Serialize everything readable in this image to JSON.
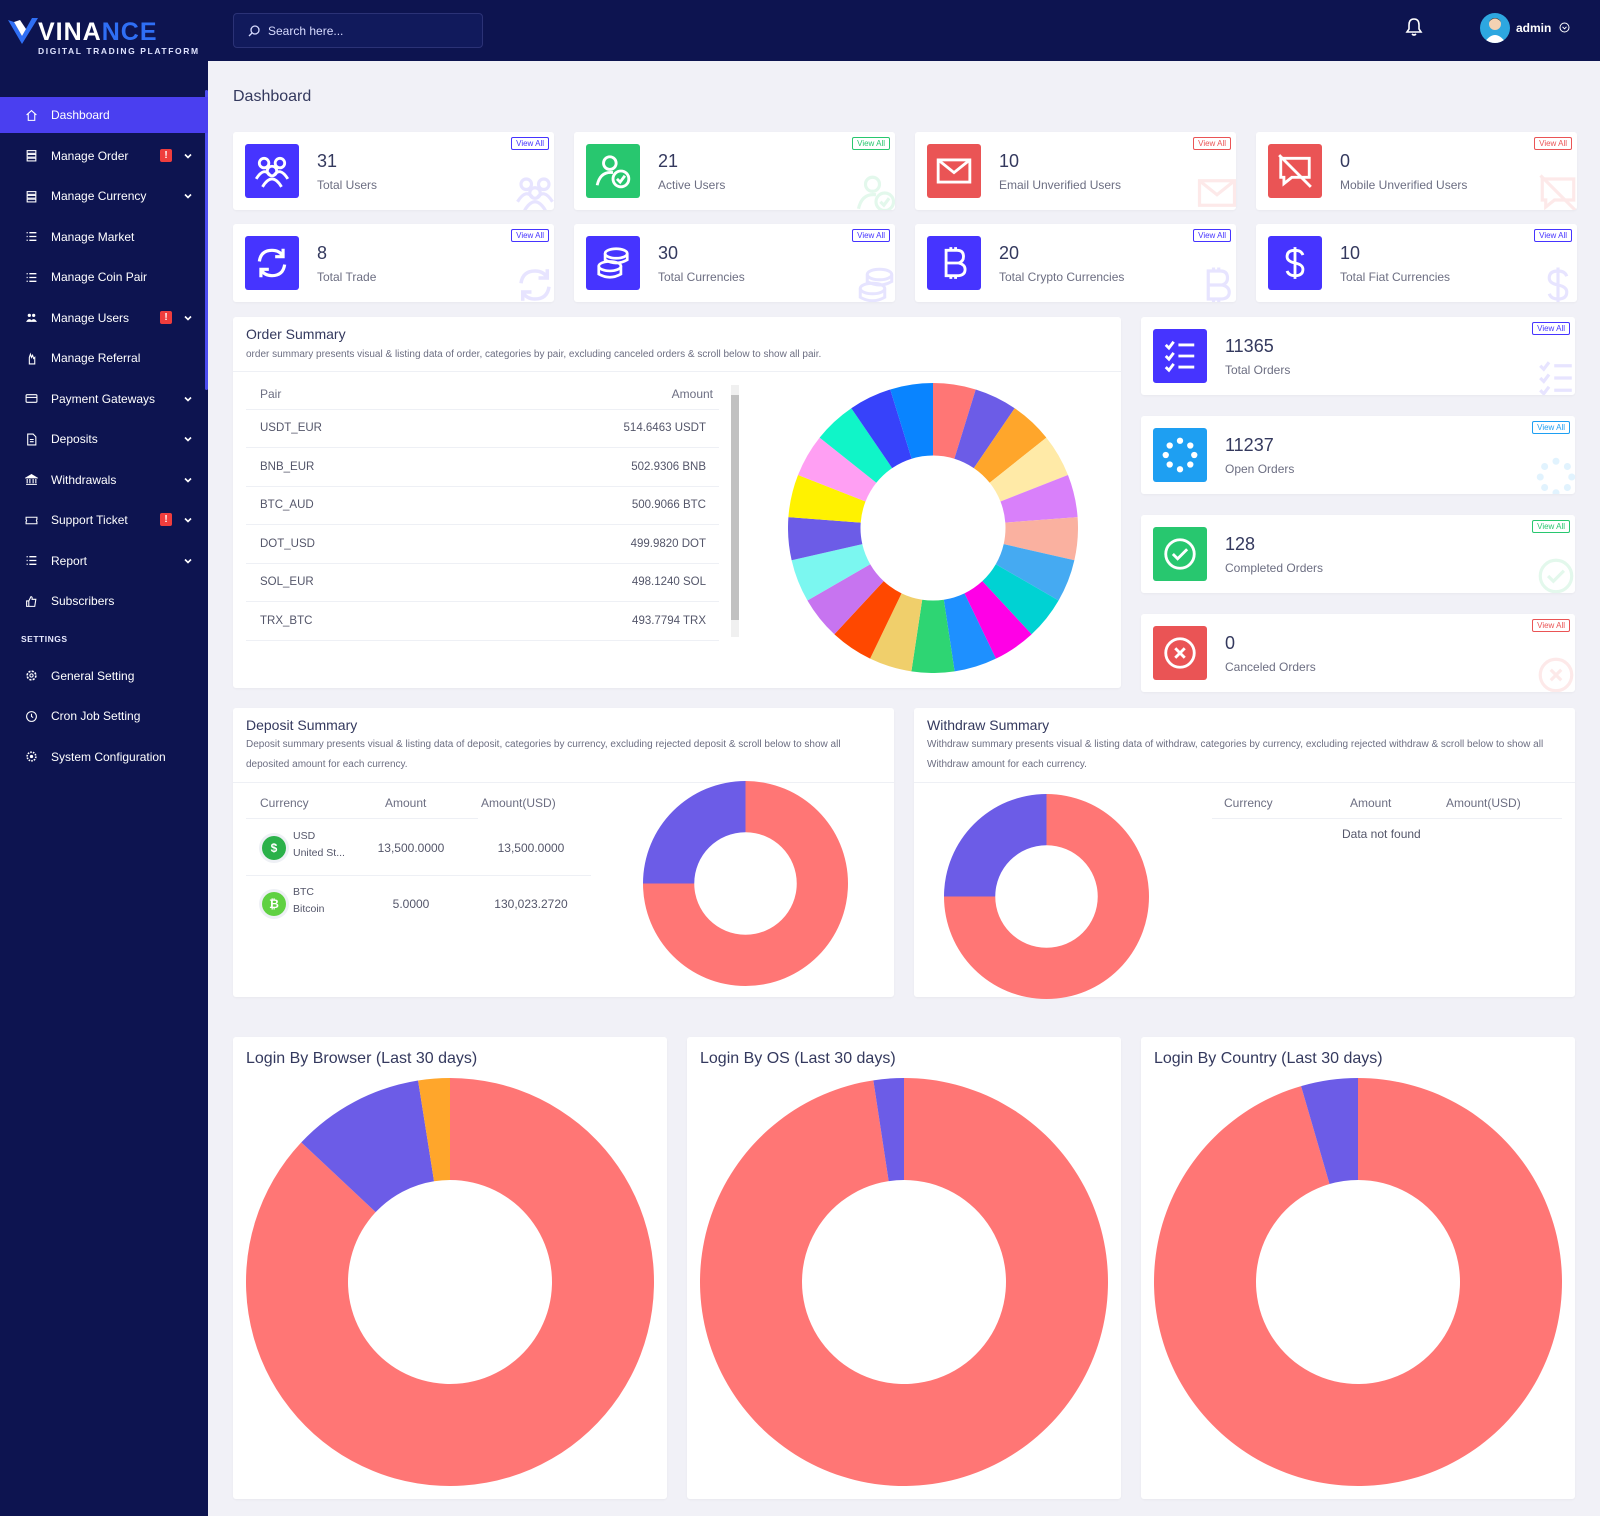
{
  "brand": {
    "name_a": "VINA",
    "name_b": "NCE",
    "tagline": "DIGITAL TRADING PLATFORM"
  },
  "search": {
    "placeholder": "Search here..."
  },
  "user": {
    "name": "admin"
  },
  "sidebar": {
    "items": [
      {
        "label": "Dashboard",
        "icon": "home-icon",
        "active": true
      },
      {
        "label": "Manage Order",
        "icon": "stack-icon",
        "badge": "!",
        "dropdown": true
      },
      {
        "label": "Manage Currency",
        "icon": "stack-icon",
        "dropdown": true
      },
      {
        "label": "Manage Market",
        "icon": "list-icon"
      },
      {
        "label": "Manage Coin Pair",
        "icon": "list-icon"
      },
      {
        "label": "Manage Users",
        "icon": "users-icon",
        "badge": "!",
        "dropdown": true
      },
      {
        "label": "Manage Referral",
        "icon": "hand-icon"
      },
      {
        "label": "Payment Gateways",
        "icon": "card-icon",
        "dropdown": true
      },
      {
        "label": "Deposits",
        "icon": "deposit-icon",
        "dropdown": true
      },
      {
        "label": "Withdrawals",
        "icon": "bank-icon",
        "dropdown": true
      },
      {
        "label": "Support Ticket",
        "icon": "ticket-icon",
        "badge": "!",
        "dropdown": true
      },
      {
        "label": "Report",
        "icon": "list-icon",
        "dropdown": true
      },
      {
        "label": "Subscribers",
        "icon": "thumb-icon"
      }
    ],
    "settings_heading": "SETTINGS",
    "settings": [
      {
        "label": "General Setting",
        "icon": "cog-icon"
      },
      {
        "label": "Cron Job Setting",
        "icon": "clock-icon"
      },
      {
        "label": "System Configuration",
        "icon": "gear-icon"
      }
    ]
  },
  "page_title": "Dashboard",
  "view_all": "View All",
  "stats": [
    {
      "value": "31",
      "label": "Total Users",
      "color": "#4634ff",
      "icon": "users-group-icon"
    },
    {
      "value": "21",
      "label": "Active Users",
      "color": "#28c76f",
      "icon": "user-check-icon"
    },
    {
      "value": "10",
      "label": "Email Unverified Users",
      "color": "#ea5455",
      "icon": "envelope-icon"
    },
    {
      "value": "0",
      "label": "Mobile Unverified Users",
      "color": "#ea5455",
      "icon": "comment-slash-icon"
    },
    {
      "value": "8",
      "label": "Total Trade",
      "color": "#4634ff",
      "icon": "sync-icon"
    },
    {
      "value": "30",
      "label": "Total Currencies",
      "color": "#4634ff",
      "icon": "coins-icon"
    },
    {
      "value": "20",
      "label": "Total Crypto Currencies",
      "color": "#4634ff",
      "icon": "bitcoin-icon"
    },
    {
      "value": "10",
      "label": "Total Fiat Currencies",
      "color": "#4634ff",
      "icon": "dollar-icon"
    }
  ],
  "order_stats": [
    {
      "value": "11365",
      "label": "Total Orders",
      "color": "#4634ff",
      "icon": "list-check-icon"
    },
    {
      "value": "11237",
      "label": "Open Orders",
      "color": "#1e9ff2",
      "icon": "spinner-icon"
    },
    {
      "value": "128",
      "label": "Completed Orders",
      "color": "#28c76f",
      "icon": "check-circle-icon"
    },
    {
      "value": "0",
      "label": "Canceled Orders",
      "color": "#ea5455",
      "icon": "times-circle-icon"
    }
  ],
  "order_summary": {
    "title": "Order Summary",
    "desc": "order summary presents visual & listing data of order, categories by pair, excluding canceled orders & scroll below to show all pair.",
    "headers": [
      "Pair",
      "Amount"
    ],
    "rows": [
      {
        "pair": "USDT_EUR",
        "amount": "514.6463 USDT"
      },
      {
        "pair": "BNB_EUR",
        "amount": "502.9306 BNB"
      },
      {
        "pair": "BTC_AUD",
        "amount": "500.9066 BTC"
      },
      {
        "pair": "DOT_USD",
        "amount": "499.9820 DOT"
      },
      {
        "pair": "SOL_EUR",
        "amount": "498.1240 SOL"
      },
      {
        "pair": "TRX_BTC",
        "amount": "493.7794 TRX"
      }
    ]
  },
  "order_chart": {
    "type": "pie",
    "colors": [
      "#ff7675",
      "#6c5ce7",
      "#ffa62b",
      "#ffeaa7",
      "#d980fa",
      "#fab1a0",
      "#45aaf2",
      "#00d2d3",
      "#ff00e6",
      "#1e90ff",
      "#2ed573",
      "#f0cf6b",
      "#ff4800",
      "#c774f0",
      "#7bf7f0",
      "#6c5ce7",
      "#fff200",
      "#ff9ff3",
      "#10f5c8",
      "#3742fa",
      "#0984ff"
    ],
    "values": [
      1,
      1,
      1,
      1,
      1,
      1,
      1,
      1,
      1,
      1,
      1,
      1,
      1,
      1,
      1,
      1,
      1,
      1,
      1,
      1,
      1
    ]
  },
  "deposit_summary": {
    "title": "Deposit Summary",
    "desc": "Deposit summary presents visual & listing data of deposit, categories by currency, excluding rejected deposit & scroll below to show all deposited amount for each currency.",
    "headers": [
      "Currency",
      "Amount",
      "Amount(USD)"
    ],
    "rows": [
      {
        "symbol": "USD",
        "name": "United St...",
        "amount": "13,500.0000",
        "usd": "13,500.0000",
        "color": "#2bb14a",
        "glyph": "$"
      },
      {
        "symbol": "BTC",
        "name": "Bitcoin",
        "amount": "5.0000",
        "usd": "130,023.2720",
        "color": "#5fd142",
        "glyph": "₿"
      }
    ]
  },
  "deposit_chart": {
    "type": "pie",
    "values": [
      75,
      25
    ],
    "colors": [
      "#ff7675",
      "#6c5ce7"
    ]
  },
  "withdraw_summary": {
    "title": "Withdraw Summary",
    "desc": "Withdraw summary presents visual & listing data of withdraw, categories by currency, excluding rejected withdraw & scroll below to show all Withdraw amount for each currency.",
    "headers": [
      "Currency",
      "Amount",
      "Amount(USD)"
    ],
    "empty": "Data not found"
  },
  "withdraw_chart": {
    "type": "pie",
    "values": [
      75,
      25
    ],
    "colors": [
      "#ff7675",
      "#6c5ce7"
    ]
  },
  "login_browser": {
    "title": "Login By Browser (Last 30 days)"
  },
  "login_os": {
    "title": "Login By OS (Last 30 days)"
  },
  "login_country": {
    "title": "Login By Country (Last 30 days)"
  },
  "chart_data": [
    {
      "type": "pie",
      "title": "Login By Browser (Last 30 days)",
      "values": [
        87,
        10.5,
        2.5
      ],
      "colors": [
        "#ff7675",
        "#6c5ce7",
        "#ffa62b"
      ]
    },
    {
      "type": "pie",
      "title": "Login By OS (Last 30 days)",
      "values": [
        97.6,
        2.4
      ],
      "colors": [
        "#ff7675",
        "#6c5ce7"
      ]
    },
    {
      "type": "pie",
      "title": "Login By Country (Last 30 days)",
      "values": [
        95.5,
        4.5
      ],
      "colors": [
        "#ff7675",
        "#6c5ce7"
      ]
    }
  ]
}
